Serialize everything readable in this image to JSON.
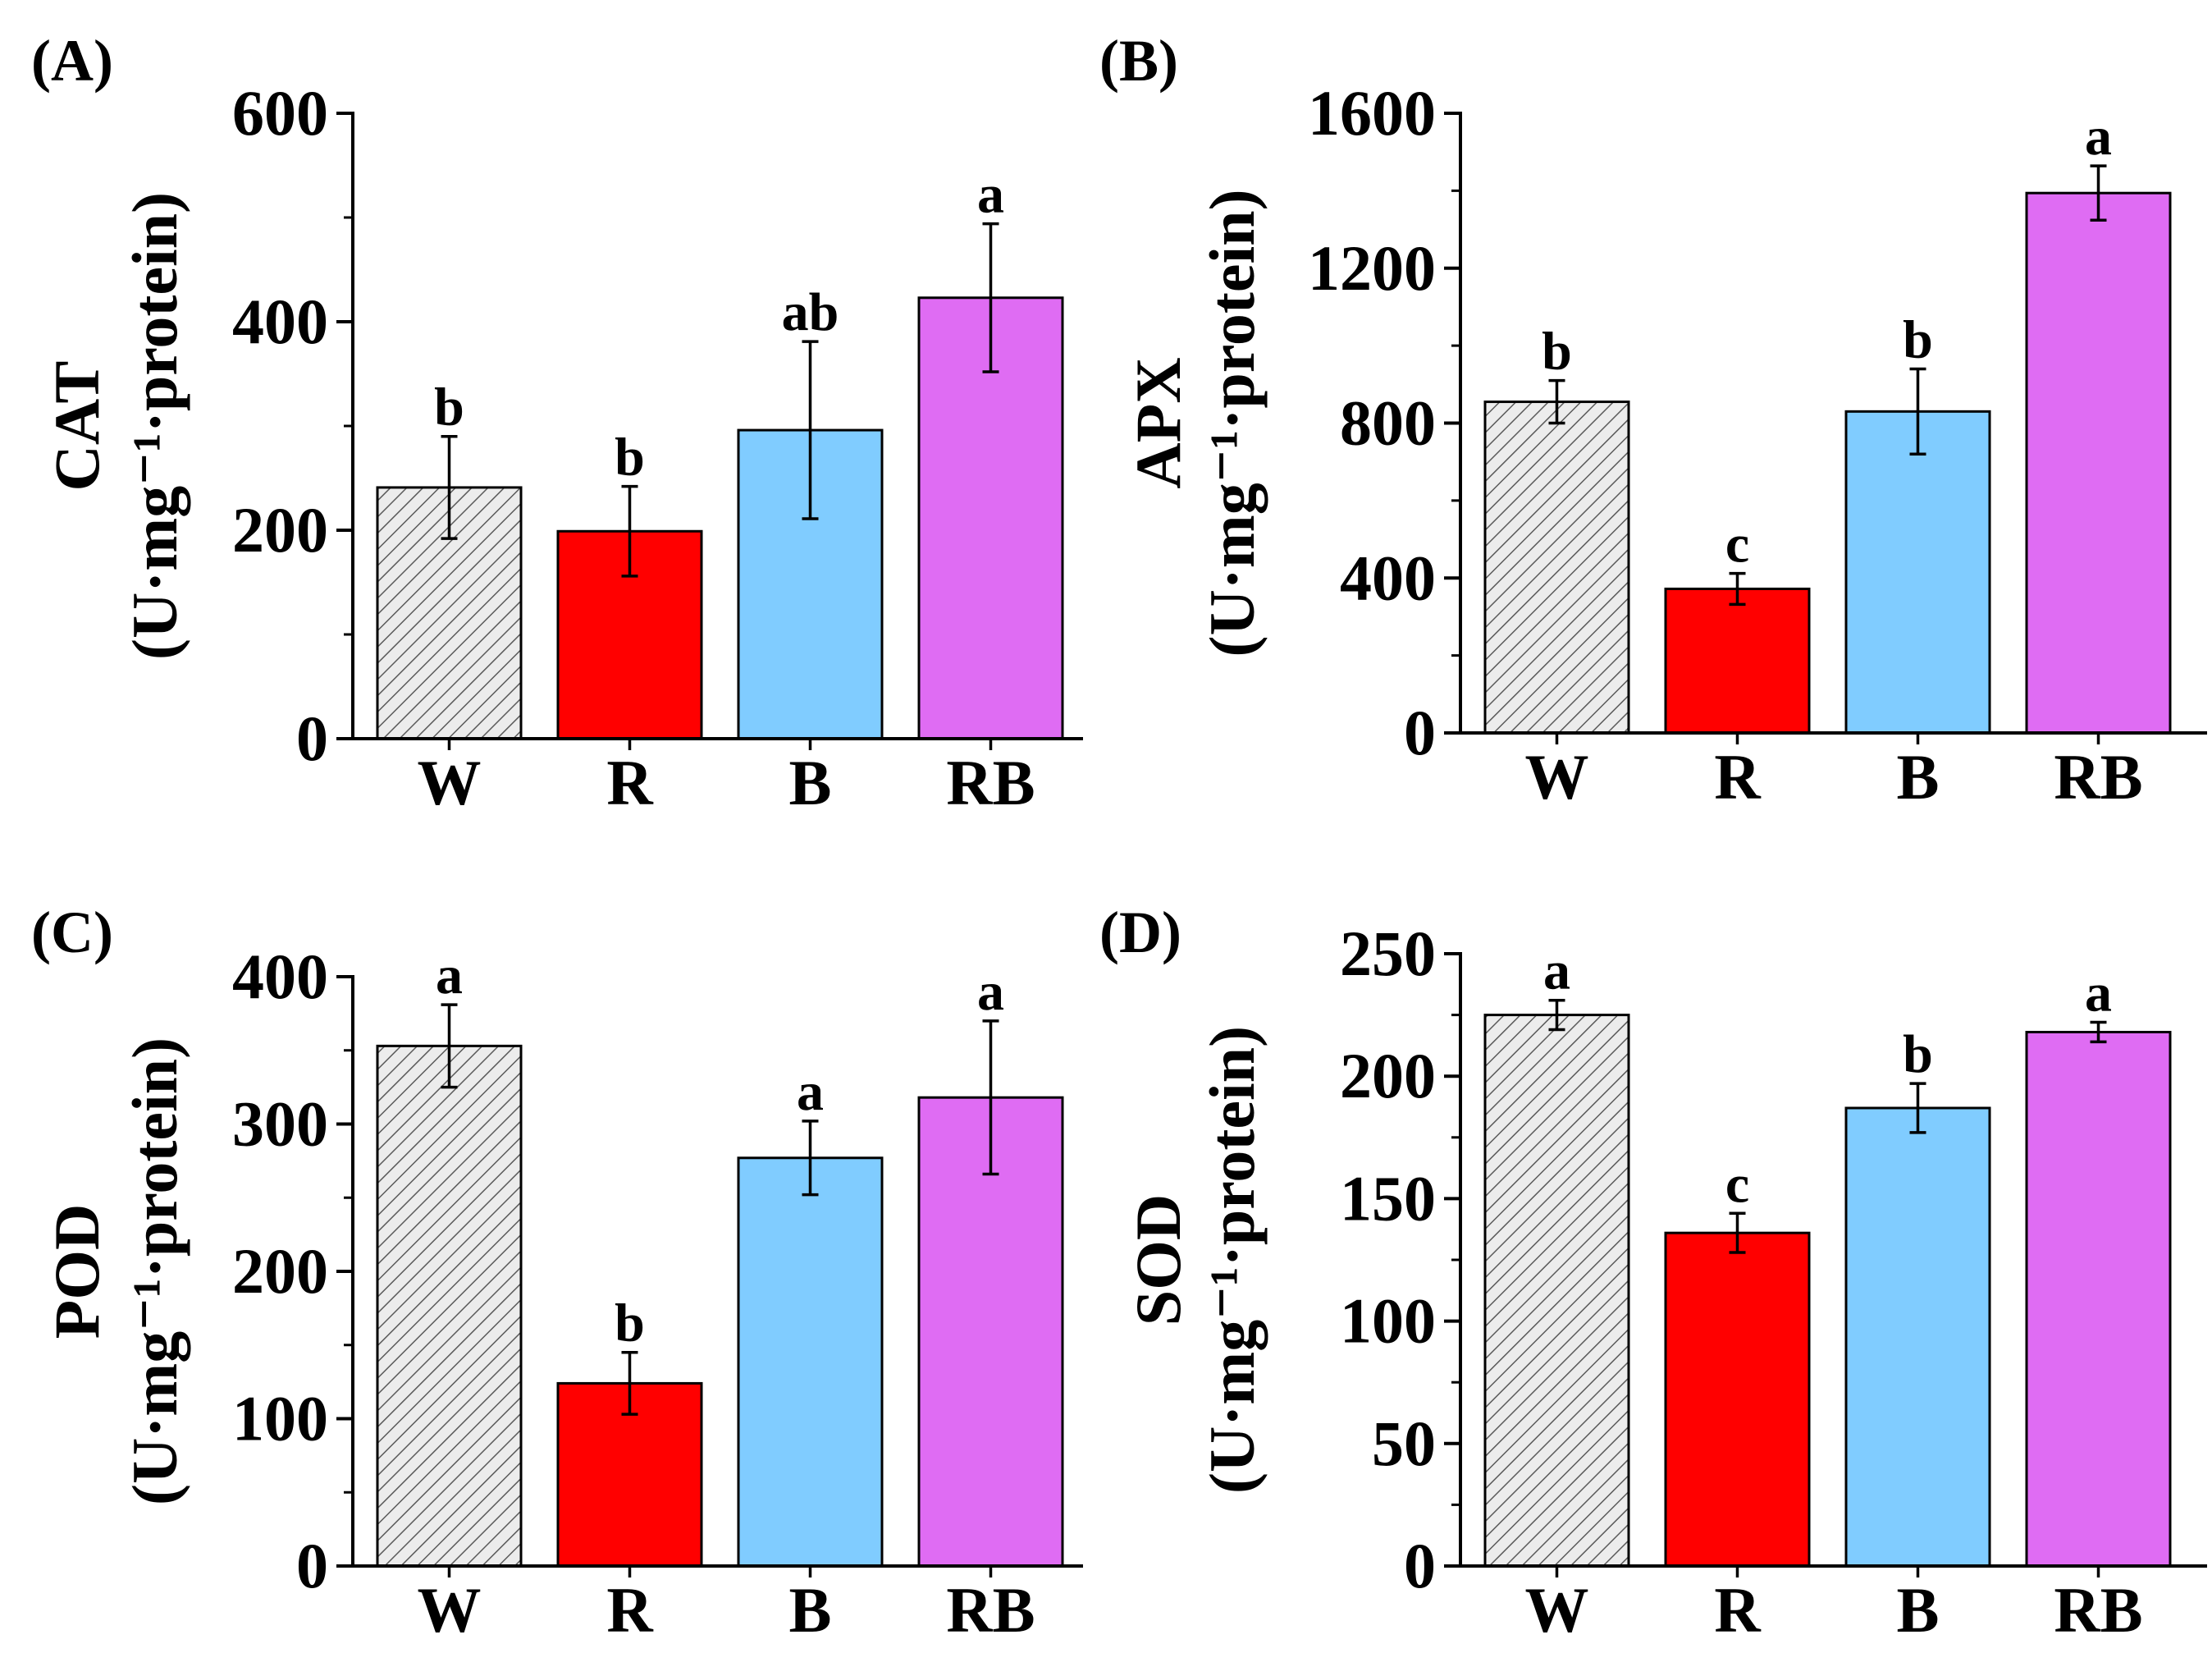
{
  "figure": {
    "title": ""
  },
  "colors": {
    "W": "#e6e6e6",
    "R": "#ff0000",
    "B": "#80ccff",
    "RB": "#df6cf3",
    "hatch": "#5a5a5a",
    "axis": "#000000"
  },
  "chart_data": [
    {
      "panel": "(A)",
      "type": "bar",
      "categories": [
        "W",
        "R",
        "B",
        "RB"
      ],
      "values": [
        241,
        199,
        296,
        423
      ],
      "errors": [
        49,
        43,
        85,
        71
      ],
      "letters": [
        "b",
        "b",
        "ab",
        "a"
      ],
      "ylabel_main": "CAT",
      "ylabel_units": "(U·mg⁻¹·protein)",
      "ylim": [
        0,
        600
      ],
      "yticks": [
        0,
        200,
        400,
        600
      ],
      "xlabel": ""
    },
    {
      "panel": "(B)",
      "type": "bar",
      "categories": [
        "W",
        "R",
        "B",
        "RB"
      ],
      "values": [
        855,
        372,
        830,
        1394
      ],
      "errors": [
        55,
        40,
        110,
        70
      ],
      "letters": [
        "b",
        "c",
        "b",
        "a"
      ],
      "ylabel_main": "APX",
      "ylabel_units": "(U·mg⁻¹·protein)",
      "ylim": [
        0,
        1600
      ],
      "yticks": [
        0,
        400,
        800,
        1200,
        1600
      ],
      "xlabel": ""
    },
    {
      "panel": "(C)",
      "type": "bar",
      "categories": [
        "W",
        "R",
        "B",
        "RB"
      ],
      "values": [
        353,
        124,
        277,
        318
      ],
      "errors": [
        28,
        21,
        25,
        52
      ],
      "letters": [
        "a",
        "b",
        "a",
        "a"
      ],
      "ylabel_main": "POD",
      "ylabel_units": "(U·mg⁻¹·protein)",
      "ylim": [
        0,
        400
      ],
      "yticks": [
        0,
        100,
        200,
        300,
        400
      ],
      "xlabel": ""
    },
    {
      "panel": "(D)",
      "type": "bar",
      "categories": [
        "W",
        "R",
        "B",
        "RB"
      ],
      "values": [
        225,
        136,
        187,
        218
      ],
      "errors": [
        6,
        8,
        10,
        4
      ],
      "letters": [
        "a",
        "c",
        "b",
        "a"
      ],
      "ylabel_main": "SOD",
      "ylabel_units": "(U·mg⁻¹·protein)",
      "ylim": [
        0,
        250
      ],
      "yticks": [
        0,
        50,
        100,
        150,
        200,
        250
      ],
      "xlabel": ""
    }
  ]
}
